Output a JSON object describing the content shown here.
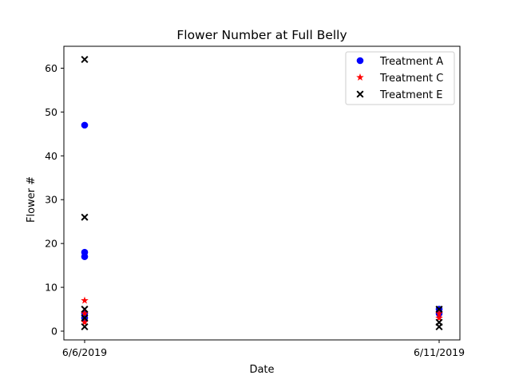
{
  "chart_data": {
    "type": "scatter",
    "title": "Flower Number at Full Belly",
    "xlabel": "Date",
    "ylabel": "Flower #",
    "x_categories": [
      "6/6/2019",
      "6/11/2019"
    ],
    "ylim": [
      -2,
      65
    ],
    "yticks": [
      0,
      10,
      20,
      30,
      40,
      50,
      60
    ],
    "ytick_labels": [
      "0",
      "10",
      "20",
      "30",
      "40",
      "50",
      "60"
    ],
    "grid": false,
    "legend_position": "top-right",
    "series": [
      {
        "name": "Treatment A",
        "marker": "circle",
        "color": "#0000ff",
        "points": [
          {
            "x": "6/6/2019",
            "y": 47
          },
          {
            "x": "6/6/2019",
            "y": 18
          },
          {
            "x": "6/6/2019",
            "y": 17
          },
          {
            "x": "6/6/2019",
            "y": 4
          },
          {
            "x": "6/6/2019",
            "y": 3
          },
          {
            "x": "6/11/2019",
            "y": 5
          },
          {
            "x": "6/11/2019",
            "y": 4
          }
        ]
      },
      {
        "name": "Treatment C",
        "marker": "star",
        "color": "#ff0000",
        "points": [
          {
            "x": "6/6/2019",
            "y": 7
          },
          {
            "x": "6/6/2019",
            "y": 4
          },
          {
            "x": "6/6/2019",
            "y": 2
          },
          {
            "x": "6/11/2019",
            "y": 4
          },
          {
            "x": "6/11/2019",
            "y": 3
          }
        ]
      },
      {
        "name": "Treatment E",
        "marker": "x",
        "color": "#000000",
        "points": [
          {
            "x": "6/6/2019",
            "y": 62
          },
          {
            "x": "6/6/2019",
            "y": 26
          },
          {
            "x": "6/6/2019",
            "y": 5
          },
          {
            "x": "6/6/2019",
            "y": 3
          },
          {
            "x": "6/6/2019",
            "y": 1
          },
          {
            "x": "6/11/2019",
            "y": 5
          },
          {
            "x": "6/11/2019",
            "y": 2
          },
          {
            "x": "6/11/2019",
            "y": 1
          }
        ]
      }
    ]
  }
}
